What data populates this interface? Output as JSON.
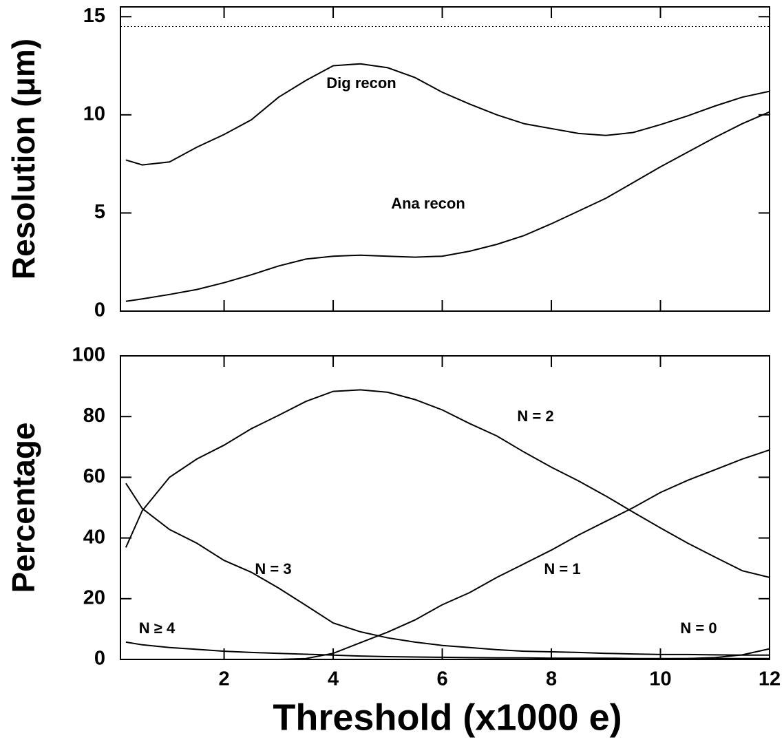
{
  "chart_data": [
    {
      "type": "line",
      "ylabel": "Resolution (μm)",
      "x": [
        0.2,
        0.5,
        1,
        1.5,
        2,
        2.5,
        3,
        3.5,
        4,
        4.5,
        5,
        5.5,
        6,
        6.5,
        7,
        7.5,
        8,
        8.5,
        9,
        9.5,
        10,
        10.5,
        11,
        11.5,
        12
      ],
      "series": [
        {
          "name": "Dig recon",
          "color": "#000000",
          "values": [
            7.7,
            7.45,
            7.6,
            8.35,
            9.0,
            9.75,
            10.9,
            11.75,
            12.5,
            12.6,
            12.4,
            11.9,
            11.15,
            10.55,
            10.0,
            9.55,
            9.3,
            9.05,
            8.95,
            9.1,
            9.5,
            9.95,
            10.45,
            10.9,
            11.2
          ]
        },
        {
          "name": "Ana recon",
          "color": "#000000",
          "values": [
            0.5,
            0.62,
            0.85,
            1.1,
            1.45,
            1.85,
            2.3,
            2.65,
            2.8,
            2.85,
            2.8,
            2.75,
            2.8,
            3.05,
            3.4,
            3.85,
            4.45,
            5.1,
            5.75,
            6.55,
            7.35,
            8.1,
            8.85,
            9.55,
            10.15
          ]
        }
      ],
      "reference_line": 14.5,
      "xlim": [
        0.1,
        12
      ],
      "xticks": [
        2,
        4,
        6,
        8,
        10,
        12
      ],
      "ylim": [
        0,
        15.5
      ],
      "yticks": [
        0,
        5,
        10,
        15
      ]
    },
    {
      "type": "line",
      "ylabel": "Percentage",
      "xlabel": "Threshold (x1000 e)",
      "x": [
        0.2,
        0.5,
        1,
        1.5,
        2,
        2.5,
        3,
        3.5,
        4,
        4.5,
        5,
        5.5,
        6,
        6.5,
        7,
        7.5,
        8,
        8.5,
        9,
        9.5,
        10,
        10.5,
        11,
        11.5,
        12
      ],
      "series": [
        {
          "name": "N = 2",
          "color": "#000000",
          "values": [
            36.9,
            49,
            60,
            66,
            70.6,
            76,
            80.4,
            85,
            88.3,
            88.8,
            88,
            85.6,
            82.2,
            77.7,
            73.6,
            68.3,
            63.3,
            58.8,
            53.8,
            48.5,
            43.3,
            38.3,
            33.7,
            29.2,
            27
          ]
        },
        {
          "name": "N = 3",
          "color": "#000000",
          "values": [
            58,
            49.7,
            42.8,
            38.3,
            32.6,
            28.7,
            23.5,
            17.8,
            12,
            9.1,
            7.1,
            5.7,
            4.6,
            3.9,
            3.2,
            2.7,
            2.5,
            2.3,
            2.0,
            1.8,
            1.6,
            1.6,
            1.5,
            1.4,
            1.4
          ]
        },
        {
          "name": "N = 1",
          "color": "#000000",
          "values": [
            0,
            0,
            0,
            0,
            0,
            0,
            0,
            0.3,
            2,
            5.5,
            9,
            13,
            18,
            22,
            27,
            31.5,
            36,
            41,
            45.5,
            50,
            55,
            59,
            62.5,
            66,
            69
          ]
        },
        {
          "name": "N ≥ 4",
          "color": "#000000",
          "values": [
            5.7,
            4.8,
            3.9,
            3.3,
            2.7,
            2.3,
            2.0,
            1.7,
            1.4,
            1.1,
            0.9,
            0.8,
            0.7,
            0.6,
            0.5,
            0.5,
            0.4,
            0.4,
            0.4,
            0.3,
            0.3,
            0.3,
            0.3,
            0.3,
            0.3
          ]
        },
        {
          "name": "N = 0",
          "color": "#000000",
          "values": [
            0,
            0,
            0,
            0,
            0,
            0,
            0,
            0,
            0,
            0,
            0,
            0,
            0,
            0,
            0,
            0,
            0,
            0,
            0,
            0.1,
            0.2,
            0.3,
            0.6,
            1.5,
            3.5
          ]
        }
      ],
      "xlim": [
        0.1,
        12
      ],
      "xticks": [
        2,
        4,
        6,
        8,
        10,
        12
      ],
      "ylim": [
        0,
        100
      ],
      "yticks": [
        0,
        20,
        40,
        60,
        80,
        100
      ]
    }
  ]
}
